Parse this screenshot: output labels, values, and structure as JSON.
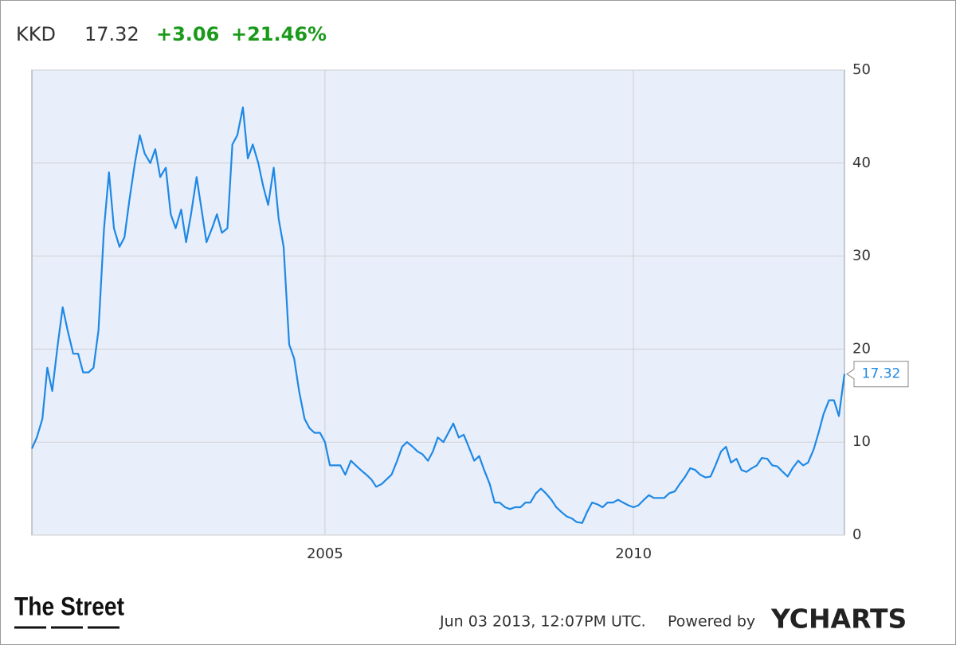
{
  "header": {
    "symbol": "KKD",
    "price": "17.32",
    "change": "+3.06",
    "change_pct": "+21.46%"
  },
  "footer": {
    "timestamp": "Jun 03 2013, 12:07PM UTC.",
    "powered": "Powered by",
    "brand": "YCHARTS",
    "logo": "The Street"
  },
  "chart_data": {
    "type": "line",
    "x": [
      2000.25,
      2000.33,
      2000.42,
      2000.5,
      2000.58,
      2000.67,
      2000.75,
      2000.83,
      2000.92,
      2001.0,
      2001.08,
      2001.17,
      2001.25,
      2001.33,
      2001.42,
      2001.5,
      2001.58,
      2001.67,
      2001.75,
      2001.83,
      2001.92,
      2002.0,
      2002.08,
      2002.17,
      2002.25,
      2002.33,
      2002.42,
      2002.5,
      2002.58,
      2002.67,
      2002.75,
      2002.83,
      2002.92,
      2003.0,
      2003.08,
      2003.17,
      2003.25,
      2003.33,
      2003.42,
      2003.5,
      2003.58,
      2003.67,
      2003.75,
      2003.83,
      2003.92,
      2004.0,
      2004.08,
      2004.17,
      2004.25,
      2004.33,
      2004.42,
      2004.5,
      2004.58,
      2004.67,
      2004.75,
      2004.83,
      2004.92,
      2005.0,
      2005.08,
      2005.17,
      2005.25,
      2005.33,
      2005.42,
      2005.5,
      2005.58,
      2005.67,
      2005.75,
      2005.83,
      2005.92,
      2006.0,
      2006.08,
      2006.17,
      2006.25,
      2006.33,
      2006.42,
      2006.5,
      2006.58,
      2006.67,
      2006.75,
      2006.83,
      2006.92,
      2007.0,
      2007.08,
      2007.17,
      2007.25,
      2007.33,
      2007.42,
      2007.5,
      2007.58,
      2007.67,
      2007.75,
      2007.83,
      2007.92,
      2008.0,
      2008.08,
      2008.17,
      2008.25,
      2008.33,
      2008.42,
      2008.5,
      2008.58,
      2008.67,
      2008.75,
      2008.83,
      2008.92,
      2009.0,
      2009.08,
      2009.17,
      2009.25,
      2009.33,
      2009.42,
      2009.5,
      2009.58,
      2009.67,
      2009.75,
      2009.83,
      2009.92,
      2010.0,
      2010.08,
      2010.17,
      2010.25,
      2010.33,
      2010.42,
      2010.5,
      2010.58,
      2010.67,
      2010.75,
      2010.83,
      2010.92,
      2011.0,
      2011.08,
      2011.17,
      2011.25,
      2011.33,
      2011.42,
      2011.5,
      2011.58,
      2011.67,
      2011.75,
      2011.83,
      2011.92,
      2012.0,
      2012.08,
      2012.17,
      2012.25,
      2012.33,
      2012.42,
      2012.5,
      2012.58,
      2012.67,
      2012.75,
      2012.83,
      2012.92,
      2013.0,
      2013.08,
      2013.17,
      2013.25,
      2013.33,
      2013.42
    ],
    "series": [
      {
        "name": "KKD",
        "color": "#1e88e5",
        "values": [
          9.3,
          10.5,
          12.5,
          18,
          15.5,
          20.5,
          24.5,
          22,
          19.5,
          19.5,
          17.5,
          17.5,
          18,
          22,
          33,
          39,
          33,
          31,
          32,
          36,
          40,
          43,
          41,
          40,
          41.5,
          38.5,
          39.5,
          34.5,
          33,
          35,
          31.5,
          34.5,
          38.5,
          35,
          31.5,
          33,
          34.5,
          32.5,
          33,
          42,
          43,
          46,
          40.5,
          42,
          40,
          37.5,
          35.5,
          39.5,
          34,
          31,
          20.5,
          19,
          15.5,
          12.5,
          11.5,
          11,
          11,
          10,
          7.5,
          7.5,
          7.5,
          6.5,
          8,
          7.5,
          7,
          6.5,
          6,
          5.2,
          5.5,
          6,
          6.5,
          8,
          9.5,
          10,
          9.5,
          9,
          8.7,
          8,
          9,
          10.5,
          10,
          11,
          12,
          10.5,
          10.8,
          9.5,
          8,
          8.5,
          7,
          5.5,
          3.5,
          3.5,
          3,
          2.8,
          3,
          3,
          3.5,
          3.5,
          4.5,
          5,
          4.5,
          3.8,
          3,
          2.5,
          2,
          1.8,
          1.4,
          1.3,
          2.5,
          3.5,
          3.3,
          3,
          3.5,
          3.5,
          3.8,
          3.5,
          3.2,
          3,
          3.2,
          3.8,
          4.3,
          4,
          4,
          4,
          4.5,
          4.7,
          5.5,
          6.2,
          7.2,
          7,
          6.5,
          6.2,
          6.3,
          7.5,
          9,
          9.5,
          7.8,
          8.2,
          7,
          6.8,
          7.2,
          7.5,
          8.3,
          8.2,
          7.5,
          7.4,
          6.8,
          6.3,
          7.2,
          8,
          7.5,
          7.8,
          9.2,
          11,
          13,
          14.5,
          14.5,
          12.8,
          17.32
        ]
      }
    ],
    "xlim": [
      2000.25,
      2013.42
    ],
    "xticks": [
      2005,
      2010
    ],
    "ylim": [
      0,
      50
    ],
    "yticks": [
      0,
      10,
      20,
      30,
      40,
      50
    ],
    "grid": true
  }
}
